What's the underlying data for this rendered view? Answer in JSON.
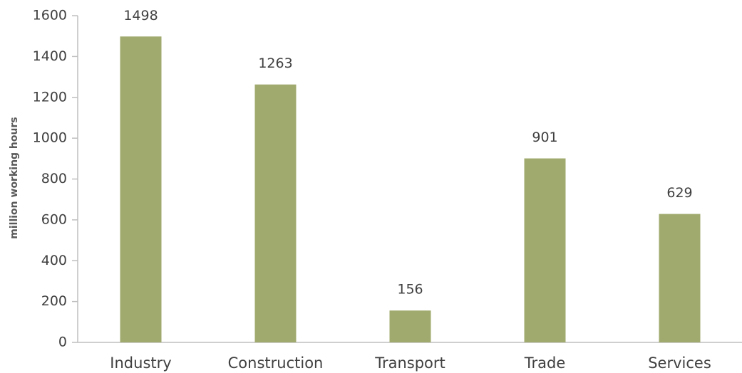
{
  "chart_data": {
    "type": "bar",
    "y_label": "million working hours",
    "categories": [
      "Industry",
      "Construction",
      "Transport",
      "Trade",
      "Services"
    ],
    "values": [
      1498,
      1263,
      156,
      901,
      629
    ],
    "color": "#a0aa6e",
    "ylim": [
      0,
      1600
    ],
    "yticks": [
      0,
      200,
      400,
      600,
      800,
      1000,
      1200,
      1400,
      1600
    ],
    "grid": false
  }
}
